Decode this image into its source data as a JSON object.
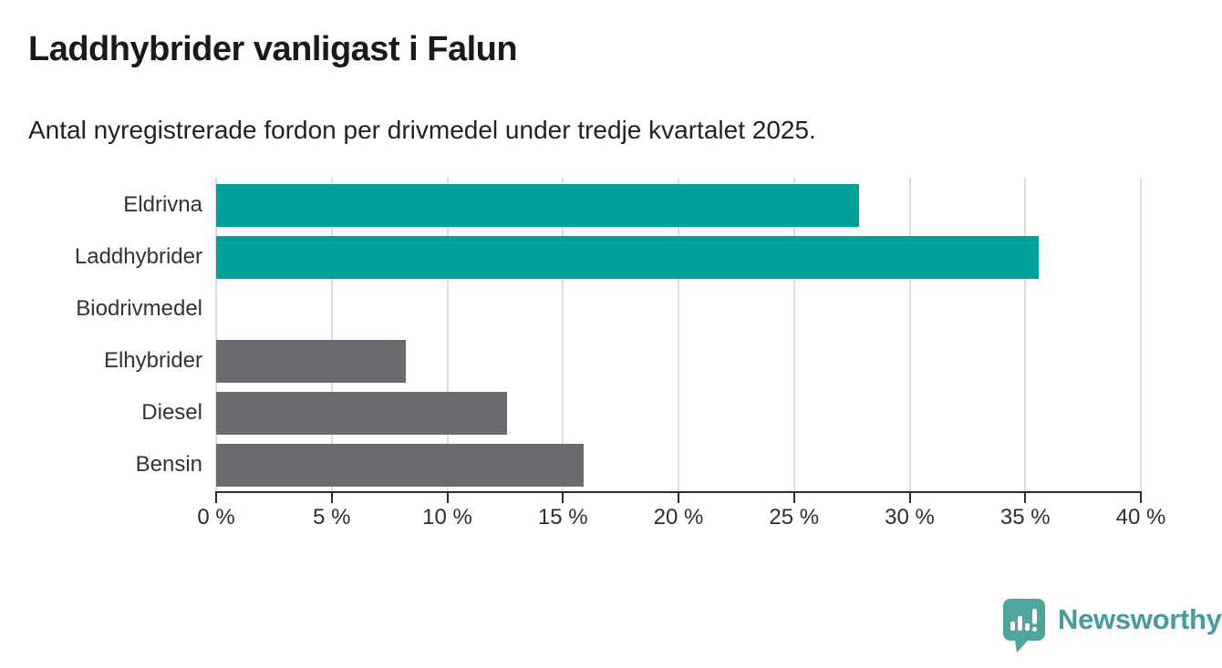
{
  "header": {
    "title": "Laddhybrider vanligast i Falun",
    "subtitle": "Antal nyregistrerade fordon per drivmedel under tredje kvartalet 2025."
  },
  "chart_data": {
    "type": "bar",
    "orientation": "horizontal",
    "title": "Laddhybrider vanligast i Falun",
    "subtitle": "Antal nyregistrerade fordon per drivmedel under tredje kvartalet 2025.",
    "categories": [
      "Eldrivna",
      "Laddhybrider",
      "Biodrivmedel",
      "Elhybrider",
      "Diesel",
      "Bensin"
    ],
    "values": [
      27.8,
      35.6,
      0,
      8.2,
      12.6,
      15.9
    ],
    "unit": "%",
    "xlim": [
      0,
      40
    ],
    "x_tick_values": [
      0,
      5,
      10,
      15,
      20,
      25,
      30,
      35,
      40
    ],
    "x_tick_labels": [
      "0 %",
      "5 %",
      "10 %",
      "15 %",
      "20 %",
      "25 %",
      "30 %",
      "35 %",
      "40 %"
    ],
    "grid": true,
    "legend": "none",
    "bar_colors": [
      "#00a19a",
      "#00a19a",
      "#6c6a6e",
      "#6c6a6e",
      "#6c6a6e",
      "#6c6a6e"
    ],
    "colors": {
      "highlight": "#00a19a",
      "default": "#6c6a6e",
      "gridline": "#dedede",
      "axis": "#2b2b2b"
    }
  },
  "footer": {
    "brand": "Newsworthy",
    "brand_color": "#459c9c",
    "logo_color": "#4fa59e",
    "logo_icon": "speech-bubble-bar-chart-exclamation"
  }
}
